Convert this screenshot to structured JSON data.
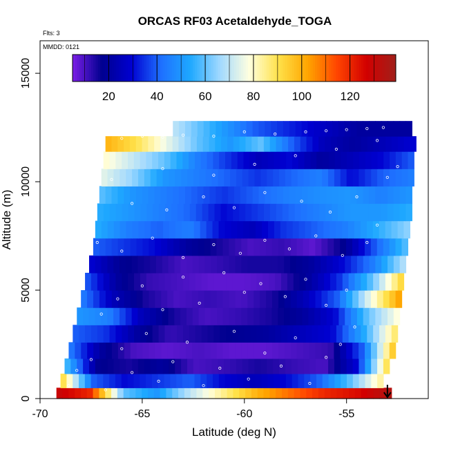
{
  "chart_data": {
    "type": "heatmap",
    "title": "ORCAS RF03 Acetaldehyde_TOGA",
    "xlabel": "Latitude (deg N)",
    "ylabel": "Altitude (m)",
    "xlim": [
      -70,
      -51
    ],
    "ylim": [
      0,
      16500
    ],
    "x_ticks": [
      -70,
      -65,
      -60,
      -55
    ],
    "x_tick_labels": [
      "-70",
      "-65",
      "-60",
      "-55"
    ],
    "y_ticks": [
      0,
      5000,
      10000,
      15000
    ],
    "y_tick_labels": [
      "0",
      "5000",
      "10000",
      "15000"
    ],
    "notes": {
      "flights": "Flts: 3",
      "date": "MMDD: 0121"
    },
    "colorbar": {
      "range": [
        5,
        139
      ],
      "ticks": [
        20,
        40,
        60,
        80,
        100,
        120
      ],
      "tick_labels": [
        "20",
        "40",
        "60",
        "80",
        "100",
        "120"
      ],
      "colors": [
        "#7b1fe6",
        "#00008f",
        "#0000d0",
        "#1e6fff",
        "#1ea8ff",
        "#9fd8ff",
        "#ffffe0",
        "#ffe24a",
        "#ffa500",
        "#ff4500",
        "#d20000",
        "#a0201a"
      ]
    },
    "domain": {
      "lat_min_bottom": -69.2,
      "lat_min_top": -66.8,
      "lat_max_bottom": -52.6,
      "lat_max_top": -51.6,
      "alt_max": 12800
    },
    "bands": [
      {
        "alt": 200,
        "lat_start": -69.2,
        "lat_end": -52.8,
        "values": [
          130,
          120,
          60,
          50,
          70,
          85,
          100,
          110,
          120,
          125,
          135
        ]
      },
      {
        "alt": 800,
        "lat_start": -69.0,
        "lat_end": -53.2,
        "values": [
          95,
          40,
          30,
          35,
          40,
          30,
          25,
          30,
          40,
          60,
          85
        ]
      },
      {
        "alt": 1500,
        "lat_start": -68.8,
        "lat_end": -52.9,
        "values": [
          60,
          18,
          15,
          20,
          10,
          12,
          15,
          12,
          10,
          30,
          95
        ]
      },
      {
        "alt": 2200,
        "lat_start": -68.6,
        "lat_end": -52.6,
        "values": [
          45,
          20,
          10,
          8,
          10,
          8,
          8,
          10,
          12,
          40,
          100
        ]
      },
      {
        "alt": 3000,
        "lat_start": -68.4,
        "lat_end": -52.5,
        "values": [
          40,
          35,
          20,
          12,
          15,
          18,
          20,
          25,
          30,
          55,
          90
        ]
      },
      {
        "alt": 3800,
        "lat_start": -68.2,
        "lat_end": -52.4,
        "values": [
          50,
          45,
          25,
          15,
          10,
          12,
          15,
          20,
          30,
          60,
          80
        ]
      },
      {
        "alt": 4600,
        "lat_start": -68.0,
        "lat_end": -52.3,
        "values": [
          45,
          25,
          15,
          10,
          12,
          10,
          15,
          25,
          40,
          75,
          105
        ]
      },
      {
        "alt": 5400,
        "lat_start": -67.8,
        "lat_end": -52.2,
        "values": [
          40,
          20,
          12,
          10,
          8,
          8,
          10,
          20,
          35,
          60,
          95
        ]
      },
      {
        "alt": 6200,
        "lat_start": -67.6,
        "lat_end": -52.1,
        "values": [
          30,
          18,
          15,
          10,
          12,
          15,
          15,
          20,
          30,
          45,
          70
        ]
      },
      {
        "alt": 7000,
        "lat_start": -67.4,
        "lat_end": -52.0,
        "values": [
          40,
          35,
          30,
          20,
          15,
          10,
          12,
          8,
          18,
          40,
          60
        ]
      },
      {
        "alt": 7800,
        "lat_start": -67.3,
        "lat_end": -51.9,
        "values": [
          55,
          45,
          40,
          45,
          30,
          25,
          35,
          40,
          45,
          55,
          65
        ]
      },
      {
        "alt": 8600,
        "lat_start": -67.2,
        "lat_end": -51.8,
        "values": [
          55,
          50,
          45,
          40,
          30,
          35,
          40,
          45,
          50,
          50,
          55
        ]
      },
      {
        "alt": 9400,
        "lat_start": -67.1,
        "lat_end": -51.8,
        "values": [
          60,
          50,
          45,
          40,
          35,
          40,
          45,
          48,
          50,
          45,
          50
        ]
      },
      {
        "alt": 10200,
        "lat_start": -67.0,
        "lat_end": -51.7,
        "values": [
          75,
          65,
          50,
          45,
          40,
          35,
          40,
          45,
          30,
          40,
          45
        ]
      },
      {
        "alt": 11000,
        "lat_start": -66.9,
        "lat_end": -51.7,
        "values": [
          80,
          70,
          60,
          45,
          35,
          25,
          30,
          20,
          25,
          30,
          40
        ]
      },
      {
        "alt": 11800,
        "lat_start": -66.8,
        "lat_end": -51.6,
        "values": [
          100,
          90,
          75,
          60,
          50,
          60,
          40,
          25,
          20,
          25,
          30
        ]
      },
      {
        "alt": 12400,
        "lat_start": -63.5,
        "lat_end": -51.8,
        "values": [
          70,
          60,
          50,
          40,
          35,
          30,
          25,
          20,
          20,
          20
        ]
      }
    ],
    "sample_points": [
      [
        -68.6,
        600
      ],
      [
        -68.2,
        1300
      ],
      [
        -67.5,
        1800
      ],
      [
        -66.8,
        400
      ],
      [
        -66.0,
        2300
      ],
      [
        -65.5,
        1200
      ],
      [
        -64.8,
        3000
      ],
      [
        -64.2,
        800
      ],
      [
        -63.5,
        1700
      ],
      [
        -62.8,
        2600
      ],
      [
        -62.0,
        600
      ],
      [
        -61.2,
        1400
      ],
      [
        -60.5,
        3100
      ],
      [
        -59.8,
        900
      ],
      [
        -59.0,
        2100
      ],
      [
        -58.2,
        1500
      ],
      [
        -57.5,
        2800
      ],
      [
        -56.8,
        700
      ],
      [
        -56.0,
        1900
      ],
      [
        -55.3,
        2500
      ],
      [
        -54.6,
        3300
      ],
      [
        -67.0,
        3900
      ],
      [
        -66.2,
        4600
      ],
      [
        -65.0,
        5200
      ],
      [
        -64.0,
        4100
      ],
      [
        -63.0,
        5600
      ],
      [
        -62.2,
        4400
      ],
      [
        -61.0,
        5800
      ],
      [
        -60.0,
        4900
      ],
      [
        -59.2,
        5300
      ],
      [
        -58.0,
        4700
      ],
      [
        -57.0,
        5500
      ],
      [
        -56.0,
        4300
      ],
      [
        -55.0,
        5000
      ],
      [
        -67.2,
        7200
      ],
      [
        -66.0,
        6800
      ],
      [
        -64.5,
        7400
      ],
      [
        -63.0,
        6500
      ],
      [
        -61.5,
        7100
      ],
      [
        -60.2,
        6700
      ],
      [
        -59.0,
        7300
      ],
      [
        -57.8,
        6900
      ],
      [
        -56.5,
        7500
      ],
      [
        -55.2,
        6600
      ],
      [
        -54.0,
        7200
      ],
      [
        -53.5,
        8000
      ],
      [
        -67.5,
        8500
      ],
      [
        -65.5,
        9000
      ],
      [
        -63.8,
        8700
      ],
      [
        -62.0,
        9300
      ],
      [
        -60.5,
        8800
      ],
      [
        -59.0,
        9500
      ],
      [
        -57.2,
        9100
      ],
      [
        -55.8,
        8600
      ],
      [
        -54.5,
        9300
      ],
      [
        -53.0,
        10200
      ],
      [
        -52.5,
        10700
      ],
      [
        -66.5,
        10100
      ],
      [
        -64.0,
        10600
      ],
      [
        -61.5,
        10300
      ],
      [
        -59.5,
        10800
      ],
      [
        -57.5,
        11200
      ],
      [
        -55.5,
        11500
      ],
      [
        -53.5,
        11900
      ],
      [
        -61.5,
        12100
      ],
      [
        -60.0,
        12300
      ],
      [
        -58.5,
        12200
      ],
      [
        -57.0,
        12300
      ],
      [
        -56.0,
        12350
      ],
      [
        -55.0,
        12400
      ],
      [
        -54.0,
        12450
      ],
      [
        -53.2,
        12500
      ],
      [
        -66.0,
        12000
      ],
      [
        -65.0,
        12100
      ],
      [
        -64.0,
        12050
      ],
      [
        -63.0,
        12150
      ]
    ],
    "marker": {
      "lat": -53.0,
      "shape": "down-arrow"
    }
  }
}
